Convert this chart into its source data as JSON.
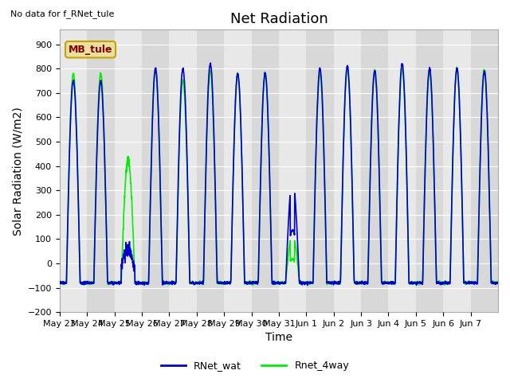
{
  "title": "Net Radiation",
  "xlabel": "Time",
  "ylabel": "Solar Radiation (W/m2)",
  "ylim": [
    -200,
    960
  ],
  "yticks": [
    -200,
    -100,
    0,
    100,
    200,
    300,
    400,
    500,
    600,
    700,
    800,
    900
  ],
  "fig_bg_color": "#ffffff",
  "plot_bg_color": "#e8e8e8",
  "plot_bg_color_alt": "#d8d8d8",
  "grid_color": "#ffffff",
  "line1_color": "#0000cc",
  "line2_color": "#00ee00",
  "legend_labels": [
    "RNet_wat",
    "Rnet_4way"
  ],
  "annotation_text": "No data for f_RNet_tule",
  "legend_box_label": "MB_tule",
  "legend_box_color": "#e8e0a0",
  "legend_box_text_color": "#8b0000",
  "legend_box_edge_color": "#c8a000",
  "x_tick_labels": [
    "May 23",
    "May 24",
    "May 25",
    "May 26",
    "May 27",
    "May 28",
    "May 29",
    "May 30",
    "May 31",
    "Jun 1",
    "Jun 2",
    "Jun 3",
    "Jun 4",
    "Jun 5",
    "Jun 6",
    "Jun 7"
  ],
  "num_days": 16,
  "title_fontsize": 13,
  "axis_fontsize": 10,
  "tick_fontsize": 8,
  "annotation_fontsize": 8,
  "legend_fontsize": 9
}
